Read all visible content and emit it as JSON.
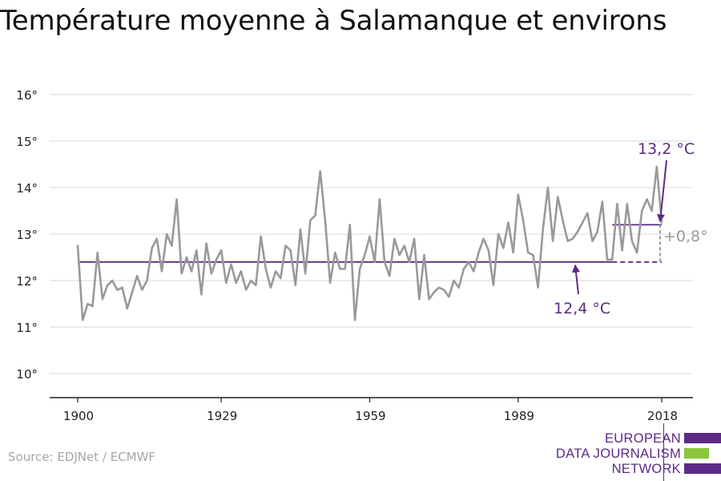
{
  "title": "Température moyenne à Salamanque et environs",
  "source": "Source: EDJNet / ECMWF",
  "logo": {
    "line1": "EUROPEAN",
    "line2": "DATA JOURNALISM",
    "line3": "NETWORK",
    "colors": {
      "purple": "#5b2a86",
      "green": "#8cc63f"
    }
  },
  "colors": {
    "series": "#999999",
    "accent": "#5b2a86",
    "grid": "#d9d9d9",
    "axis": "#222222"
  },
  "chart_data": {
    "type": "line",
    "title": "Température moyenne à Salamanque et environs",
    "xlabel": "",
    "ylabel": "",
    "xlim": [
      1900,
      2018
    ],
    "ylim": [
      10,
      16
    ],
    "x_ticks": [
      1900,
      1929,
      1959,
      1989,
      2018
    ],
    "y_ticks": [
      {
        "value": 10,
        "label": "10°"
      },
      {
        "value": 11,
        "label": "11°"
      },
      {
        "value": 12,
        "label": "12°"
      },
      {
        "value": 13,
        "label": "13°"
      },
      {
        "value": 14,
        "label": "14°"
      },
      {
        "value": 15,
        "label": "15°"
      },
      {
        "value": 16,
        "label": "16°"
      }
    ],
    "grid": true,
    "series": [
      {
        "x": [
          1900,
          1901,
          1902,
          1903,
          1904,
          1905,
          1906,
          1907,
          1908,
          1909,
          1910,
          1911,
          1912,
          1913,
          1914,
          1915,
          1916,
          1917,
          1918,
          1919,
          1920,
          1921,
          1922,
          1923,
          1924,
          1925,
          1926,
          1927,
          1928,
          1929,
          1930,
          1931,
          1932,
          1933,
          1934,
          1935,
          1936,
          1937,
          1938,
          1939,
          1940,
          1941,
          1942,
          1943,
          1944,
          1945,
          1946,
          1947,
          1948,
          1949,
          1950,
          1951,
          1952,
          1953,
          1954,
          1955,
          1956,
          1957,
          1958,
          1959,
          1960,
          1961,
          1962,
          1963,
          1964,
          1965,
          1966,
          1967,
          1968,
          1969,
          1970,
          1971,
          1972,
          1973,
          1974,
          1975,
          1976,
          1977,
          1978,
          1979,
          1980,
          1981,
          1982,
          1983,
          1984,
          1985,
          1986,
          1987,
          1988,
          1989,
          1990,
          1991,
          1992,
          1993,
          1994,
          1995,
          1996,
          1997,
          1998,
          1999,
          2000,
          2001,
          2002,
          2003,
          2004,
          2005,
          2006,
          2007,
          2008,
          2009,
          2010,
          2011,
          2012,
          2013,
          2014,
          2015,
          2016,
          2017,
          2018
        ],
        "values": [
          12.75,
          11.15,
          11.5,
          11.45,
          12.6,
          11.6,
          11.9,
          12.0,
          11.8,
          11.85,
          11.4,
          11.75,
          12.1,
          11.8,
          12.0,
          12.7,
          12.9,
          12.2,
          13.0,
          12.75,
          13.75,
          12.15,
          12.5,
          12.2,
          12.65,
          11.7,
          12.8,
          12.15,
          12.45,
          12.65,
          11.95,
          12.35,
          11.95,
          12.2,
          11.8,
          12.0,
          11.9,
          12.95,
          12.25,
          11.85,
          12.2,
          12.05,
          12.75,
          12.65,
          11.9,
          13.1,
          12.15,
          13.3,
          13.4,
          14.35,
          13.3,
          11.95,
          12.6,
          12.25,
          12.25,
          13.2,
          11.15,
          12.25,
          12.55,
          12.95,
          12.4,
          13.75,
          12.4,
          12.1,
          12.9,
          12.55,
          12.75,
          12.4,
          12.9,
          11.6,
          12.55,
          11.6,
          11.75,
          11.85,
          11.8,
          11.65,
          12.0,
          11.85,
          12.25,
          12.4,
          12.2,
          12.6,
          12.9,
          12.65,
          11.9,
          13.0,
          12.7,
          13.25,
          12.6,
          13.85,
          13.3,
          12.6,
          12.55,
          11.85,
          13.1,
          14.0,
          12.85,
          13.8,
          13.3,
          12.85,
          12.9,
          13.05,
          13.25,
          13.45,
          12.85,
          13.05,
          13.7,
          12.45,
          12.45,
          13.65,
          12.65,
          13.65,
          12.85,
          12.6,
          13.5,
          13.75,
          13.5,
          14.45,
          13.25
        ]
      }
    ],
    "annotations": {
      "baseline": {
        "value": 12.4,
        "from": 1900,
        "to": 2018,
        "solid_until": 2008,
        "label": "12,4 °C"
      },
      "recent": {
        "value": 13.2,
        "from": 2008,
        "to": 2018,
        "label": "13,2 °C"
      },
      "difference": {
        "label": "+0,8°"
      }
    }
  }
}
